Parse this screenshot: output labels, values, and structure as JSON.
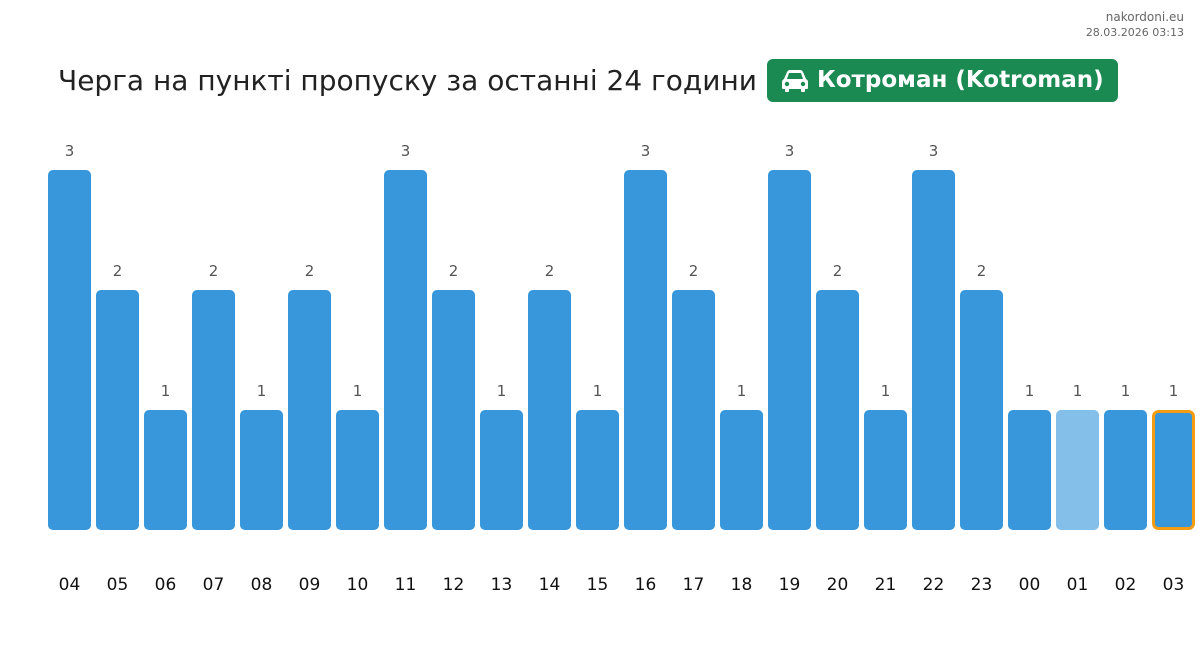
{
  "brand": {
    "site": "nakordoni.eu",
    "timestamp": "28.03.2026 03:13"
  },
  "header": {
    "title": "Черга на пункті пропуску за останні 24 години",
    "checkpoint": {
      "label": "Котроман (Kotroman)",
      "icon": "car-icon",
      "color": "#1b8a52"
    }
  },
  "colors": {
    "bar": "#3897db",
    "bar_light": "#83bfe8",
    "current_outline": "#f39c12"
  },
  "chart_data": {
    "type": "bar",
    "categories": [
      "04",
      "05",
      "06",
      "07",
      "08",
      "09",
      "10",
      "11",
      "12",
      "13",
      "14",
      "15",
      "16",
      "17",
      "18",
      "19",
      "20",
      "21",
      "22",
      "23",
      "00",
      "01",
      "02",
      "03"
    ],
    "values": [
      3,
      2,
      1,
      2,
      1,
      2,
      1,
      3,
      2,
      1,
      2,
      1,
      3,
      2,
      1,
      3,
      2,
      1,
      3,
      2,
      1,
      1,
      1,
      1
    ],
    "ylim": [
      0,
      3
    ],
    "highlight_light_category": "01",
    "current_category": "03",
    "grid": false,
    "legend": "none"
  }
}
